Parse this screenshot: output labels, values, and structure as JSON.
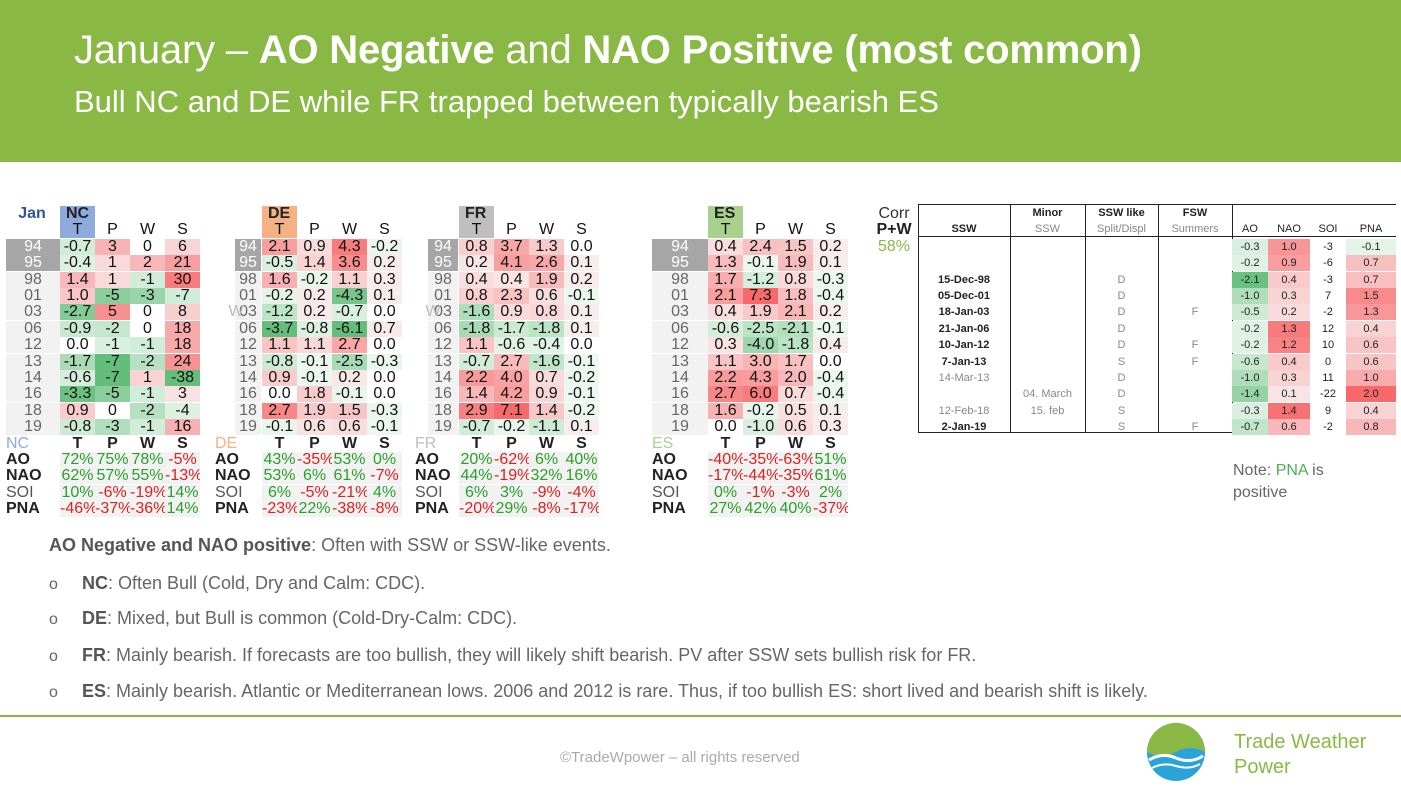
{
  "header": {
    "title_pre": "January – ",
    "title_b1": "AO Negative",
    "title_mid": " and ",
    "title_b2": "NAO Positive (most common)",
    "subtitle": "Bull NC and DE while FR trapped between typically bearish ES"
  },
  "grid": {
    "jan": "Jan",
    "w": "W",
    "years": [
      "94",
      "95",
      "98",
      "01",
      "03",
      "06",
      "12",
      "13",
      "14",
      "16",
      "18",
      "19"
    ],
    "blocks": [
      {
        "name": "NC",
        "cols": [
          "T",
          "P",
          "W",
          "S"
        ],
        "color": "#8faadc",
        "rows": [
          [
            "-0.7",
            "3",
            "0",
            "6"
          ],
          [
            "-0.4",
            "1",
            "2",
            "21"
          ],
          [
            "1.4",
            "1",
            "-1",
            "30"
          ],
          [
            "1.0",
            "-5",
            "-3",
            "-7"
          ],
          [
            "-2.7",
            "5",
            "0",
            "8"
          ],
          [
            "-0.9",
            "-2",
            "0",
            "18"
          ],
          [
            "0.0",
            "-1",
            "-1",
            "18"
          ],
          [
            "-1.7",
            "-7",
            "-2",
            "24"
          ],
          [
            "-0.6",
            "-7",
            "1",
            "-38"
          ],
          [
            "-3.3",
            "-5",
            "-1",
            "3"
          ],
          [
            "0.9",
            "0",
            "-2",
            "-4"
          ],
          [
            "-0.8",
            "-3",
            "-1",
            "16"
          ]
        ],
        "corr": {
          "AO": [
            "72%",
            "75%",
            "78%",
            "-5%"
          ],
          "NAO": [
            "62%",
            "57%",
            "55%",
            "-13%"
          ],
          "SOI": [
            "10%",
            "-6%",
            "-19%",
            "14%"
          ],
          "PNA": [
            "-46%",
            "-37%",
            "-36%",
            "14%"
          ]
        }
      },
      {
        "name": "DE",
        "cols": [
          "T",
          "P",
          "W",
          "S"
        ],
        "color": "#f4b183",
        "rows": [
          [
            "2.1",
            "0.9",
            "4.3",
            "-0.2"
          ],
          [
            "-0.5",
            "1.4",
            "3.6",
            "0.2"
          ],
          [
            "1.6",
            "-0.2",
            "1.1",
            "0.3"
          ],
          [
            "-0.2",
            "0.2",
            "-4.3",
            "0.1"
          ],
          [
            "-1.2",
            "0.2",
            "-0.7",
            "0.0"
          ],
          [
            "-3.7",
            "-0.8",
            "-6.1",
            "0.7"
          ],
          [
            "1.1",
            "1.1",
            "2.7",
            "0.0"
          ],
          [
            "-0.8",
            "-0.1",
            "-2.5",
            "-0.3"
          ],
          [
            "0.9",
            "-0.1",
            "0.2",
            "0.0"
          ],
          [
            "0.0",
            "1.8",
            "-0.1",
            "0.0"
          ],
          [
            "2.7",
            "1.9",
            "1.5",
            "-0.3"
          ],
          [
            "-0.1",
            "0.6",
            "0.6",
            "-0.1"
          ]
        ],
        "corr": {
          "AO": [
            "43%",
            "-35%",
            "53%",
            "0%"
          ],
          "NAO": [
            "53%",
            "6%",
            "61%",
            "-7%"
          ],
          "SOI": [
            "6%",
            "-5%",
            "-21%",
            "4%"
          ],
          "PNA": [
            "-23%",
            "22%",
            "-38%",
            "-8%"
          ]
        }
      },
      {
        "name": "FR",
        "cols": [
          "T",
          "P",
          "W",
          "S"
        ],
        "color": "#bfbfbf",
        "rows": [
          [
            "0.8",
            "3.7",
            "1.3",
            "0.0"
          ],
          [
            "0.2",
            "4.1",
            "2.6",
            "0.1"
          ],
          [
            "0.4",
            "0.4",
            "1.9",
            "0.2"
          ],
          [
            "0.8",
            "2.3",
            "0.6",
            "-0.1"
          ],
          [
            "-1.6",
            "0.9",
            "0.8",
            "0.1"
          ],
          [
            "-1.8",
            "-1.7",
            "-1.8",
            "0.1"
          ],
          [
            "1.1",
            "-0.6",
            "-0.4",
            "0.0"
          ],
          [
            "-0.7",
            "2.7",
            "-1.6",
            "-0.1"
          ],
          [
            "2.2",
            "4.0",
            "0.7",
            "-0.2"
          ],
          [
            "1.4",
            "4.2",
            "0.9",
            "-0.1"
          ],
          [
            "2.9",
            "7.1",
            "1.4",
            "-0.2"
          ],
          [
            "-0.7",
            "-0.2",
            "-1.1",
            "0.1"
          ]
        ],
        "corr": {
          "AO": [
            "20%",
            "-62%",
            "6%",
            "40%"
          ],
          "NAO": [
            "44%",
            "-19%",
            "32%",
            "16%"
          ],
          "SOI": [
            "6%",
            "3%",
            "-9%",
            "-4%"
          ],
          "PNA": [
            "-20%",
            "29%",
            "-8%",
            "-17%"
          ]
        }
      },
      {
        "name": "ES",
        "cols": [
          "T",
          "P",
          "W",
          "S"
        ],
        "color": "#a9d18e",
        "rows": [
          [
            "0.4",
            "2.4",
            "1.5",
            "0.2"
          ],
          [
            "1.3",
            "-0.1",
            "1.9",
            "0.1"
          ],
          [
            "1.7",
            "-1.2",
            "0.8",
            "-0.3"
          ],
          [
            "2.1",
            "7.3",
            "1.8",
            "-0.4"
          ],
          [
            "0.4",
            "1.9",
            "2.1",
            "0.2"
          ],
          [
            "-0.6",
            "-2.5",
            "-2.1",
            "-0.1"
          ],
          [
            "0.3",
            "-4.0",
            "-1.8",
            "0.4"
          ],
          [
            "1.1",
            "3.0",
            "1.7",
            "0.0"
          ],
          [
            "2.2",
            "4.3",
            "2.0",
            "-0.4"
          ],
          [
            "2.7",
            "6.0",
            "0.7",
            "-0.4"
          ],
          [
            "1.6",
            "-0.2",
            "0.5",
            "0.1"
          ],
          [
            "0.0",
            "-1.0",
            "0.6",
            "0.3"
          ]
        ],
        "corr": {
          "AO": [
            "-40%",
            "-35%",
            "-63%",
            "51%"
          ],
          "NAO": [
            "-17%",
            "-44%",
            "-35%",
            "61%"
          ],
          "SOI": [
            "0%",
            "-1%",
            "-3%",
            "2%"
          ],
          "PNA": [
            "27%",
            "42%",
            "40%",
            "-37%"
          ]
        }
      }
    ],
    "corr_labels": [
      "AO",
      "NAO",
      "SOI",
      "PNA"
    ],
    "corr_head": "Corr",
    "pw_head": "P+W",
    "pw_value": "58%"
  },
  "ssw": {
    "headers": {
      "ssw": "SSW",
      "minor": "Minor",
      "minor_sub": "SSW",
      "like": "SSW like",
      "like_sub": "Split/Displ",
      "fsw": "FSW",
      "fsw_sub": "Summers",
      "ao": "AO",
      "nao": "NAO",
      "soi": "SOI",
      "pna": "PNA"
    },
    "rows": [
      {
        "ssw": "",
        "minor": "",
        "like": "",
        "fsw": "",
        "vals": [
          "-0.3",
          "1.0",
          "-3",
          "-0.1"
        ]
      },
      {
        "ssw": "",
        "minor": "",
        "like": "",
        "fsw": "",
        "vals": [
          "-0.2",
          "0.9",
          "-6",
          "0.7"
        ]
      },
      {
        "ssw": "15-Dec-98",
        "minor": "",
        "like": "D",
        "fsw": "",
        "vals": [
          "-2.1",
          "0.4",
          "-3",
          "0.7"
        ]
      },
      {
        "ssw": "05-Dec-01",
        "minor": "",
        "like": "D",
        "fsw": "",
        "vals": [
          "-1.0",
          "0.3",
          "7",
          "1.5"
        ]
      },
      {
        "ssw": "18-Jan-03",
        "minor": "",
        "like": "D",
        "fsw": "F",
        "vals": [
          "-0.5",
          "0.2",
          "-2",
          "1.3"
        ]
      },
      {
        "ssw": "21-Jan-06",
        "minor": "",
        "like": "D",
        "fsw": "",
        "vals": [
          "-0.2",
          "1.3",
          "12",
          "0.4"
        ]
      },
      {
        "ssw": "10-Jan-12",
        "minor": "",
        "like": "D",
        "fsw": "F",
        "vals": [
          "-0.2",
          "1.2",
          "10",
          "0.6"
        ]
      },
      {
        "ssw": "7-Jan-13",
        "minor": "",
        "like": "S",
        "fsw": "F",
        "vals": [
          "-0.6",
          "0.4",
          "0",
          "0.6"
        ]
      },
      {
        "ssw": "14-Mar-13",
        "minor": "",
        "like": "D",
        "fsw": "",
        "vals": [
          "-1.0",
          "0.3",
          "11",
          "1.0"
        ]
      },
      {
        "ssw": "",
        "minor": "04. March",
        "like": "D",
        "fsw": "",
        "vals": [
          "-1.4",
          "0.1",
          "-22",
          "2.0"
        ]
      },
      {
        "ssw": "12-Feb-18",
        "minor": "15. feb",
        "like": "S",
        "fsw": "",
        "vals": [
          "-0.3",
          "1.4",
          "9",
          "0.4"
        ]
      },
      {
        "ssw": "2-Jan-19",
        "minor": "",
        "like": "S",
        "fsw": "F",
        "vals": [
          "-0.7",
          "0.6",
          "-2",
          "0.8"
        ]
      }
    ]
  },
  "note": {
    "pre": "Note: ",
    "pna": "PNA",
    "post": " is positive"
  },
  "bullets": {
    "head_b": "AO Negative and NAO positive",
    "head_rest": ": Often with SSW or SSW-like events.",
    "marker": "o",
    "items": [
      {
        "b": "NC",
        "t": ": Often Bull (Cold, Dry and Calm: CDC)."
      },
      {
        "b": "DE",
        "t": ": Mixed, but Bull is common (Cold-Dry-Calm: CDC)."
      },
      {
        "b": "FR",
        "t": ": Mainly bearish. If forecasts are too bullish, they will likely shift bearish. PV after SSW sets bullish risk for FR."
      },
      {
        "b": "ES",
        "t": ": Mainly bearish. Atlantic or Mediterranean lows. 2006 and 2012 is rare. Thus, if too bullish ES: short lived and bearish shift is likely."
      }
    ]
  },
  "footer": {
    "copyright": "©TradeWpower – all rights reserved",
    "logo_line1": "Trade Weather",
    "logo_line2": "Power"
  },
  "colors": {
    "header": "#8ab844",
    "pos": "#f8696b",
    "neg": "#63be7b"
  }
}
